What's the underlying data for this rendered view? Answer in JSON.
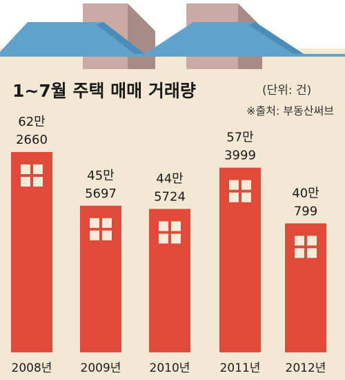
{
  "colors": {
    "roof": "#5fa3cc",
    "roof_dark": "#4b8db8",
    "chimney": "#c9aaa4",
    "chimney_shade": "#a88a86",
    "wall": "#f3e8d4",
    "bar": "#e04a3a",
    "window": "#f8ecd8",
    "title_text": "#1a1a1a",
    "sub_text": "#333333"
  },
  "chart_data": {
    "type": "bar",
    "title": "1~7월 주택 매매 거래량",
    "unit_note": "(단위: 건)",
    "source": "※출처: 부동산써브",
    "categories": [
      "2008년",
      "2009년",
      "2010년",
      "2011년",
      "2012년"
    ],
    "values": [
      622660,
      455697,
      445724,
      573999,
      400799
    ],
    "value_label_top": [
      "62만",
      "45만",
      "44만",
      "57만",
      "40만"
    ],
    "value_label_bottom": [
      "2660",
      "5697",
      "5724",
      "3999",
      "799"
    ],
    "ylim": [
      0,
      622660
    ]
  }
}
